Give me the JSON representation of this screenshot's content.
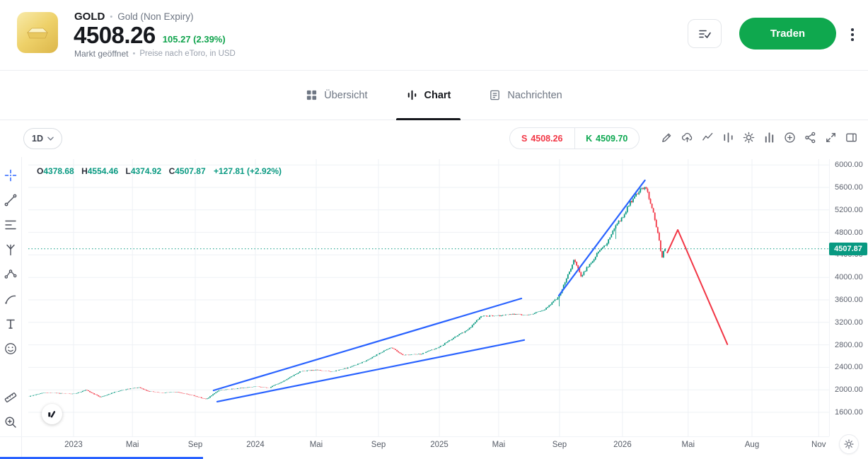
{
  "colors": {
    "accent_green": "#0fa84e",
    "sell_red": "#f23645",
    "buy_green": "#0ca750",
    "candle_up": "#089981",
    "candle_down": "#f23645",
    "trendline_blue": "#2962ff"
  },
  "header": {
    "symbol": "GOLD",
    "separator": "•",
    "instrument_name": "Gold (Non Expiry)",
    "price": "4508.26",
    "change": "105.27 (2.39%)",
    "market_status": "Markt geöffnet",
    "price_source_note": "Preise nach eToro, in USD",
    "trade_button_label": "Traden"
  },
  "tabs": [
    {
      "label": "Übersicht",
      "active": false
    },
    {
      "label": "Chart",
      "active": true
    },
    {
      "label": "Nachrichten",
      "active": false
    }
  ],
  "chart_toolbar": {
    "timeframe": "1D",
    "sell_label": "S",
    "sell_price": "4508.26",
    "buy_label": "K",
    "buy_price": "4509.70",
    "icons": [
      "draw",
      "cloud-sync",
      "trendline-style",
      "indicators",
      "settings",
      "chart-style",
      "compare",
      "share",
      "fullscreen",
      "side-panel"
    ]
  },
  "side_toolbar_icons": [
    "crosshair",
    "trend-line",
    "fib-lines",
    "pitchfork",
    "pattern",
    "brush",
    "text",
    "emoji",
    "measure",
    "zoom-in"
  ],
  "chart_data": {
    "type": "candlestick",
    "instrument": "GOLD",
    "timeframe": "1D",
    "legend": {
      "o_label": "O",
      "o_value": "4378.68",
      "h_label": "H",
      "h_value": "4554.46",
      "l_label": "L",
      "l_value": "4374.92",
      "c_label": "C",
      "c_value": "4507.87",
      "change": "+127.81 (+2.92%)"
    },
    "current_price": 4507.87,
    "axis_price_top": 6103,
    "axis_price_bottom": 1172,
    "grid": true,
    "y_ticks": [
      6000,
      5600,
      5200,
      4800,
      4400,
      4000,
      3600,
      3200,
      2800,
      2400,
      2000,
      1600
    ],
    "x_ticks": [
      {
        "label": "2023",
        "pos": 0.0565
      },
      {
        "label": "Mai",
        "pos": 0.13
      },
      {
        "label": "Sep",
        "pos": 0.2085
      },
      {
        "label": "2024",
        "pos": 0.2836
      },
      {
        "label": "Mai",
        "pos": 0.3595
      },
      {
        "label": "Sep",
        "pos": 0.4373
      },
      {
        "label": "2025",
        "pos": 0.5133
      },
      {
        "label": "Mai",
        "pos": 0.5874
      },
      {
        "label": "Sep",
        "pos": 0.6634
      },
      {
        "label": "2026",
        "pos": 0.742
      },
      {
        "label": "Mai",
        "pos": 0.824
      },
      {
        "label": "Aug",
        "pos": 0.9037
      },
      {
        "label": "Nov",
        "pos": 0.987
      }
    ],
    "candles_end_frac": 0.796,
    "candle_count": 440,
    "price_anchors": [
      [
        0.0,
        1880
      ],
      [
        0.02,
        1950
      ],
      [
        0.0565,
        1925
      ],
      [
        0.072,
        1995
      ],
      [
        0.09,
        1870
      ],
      [
        0.108,
        1960
      ],
      [
        0.125,
        2015
      ],
      [
        0.138,
        2040
      ],
      [
        0.15,
        1975
      ],
      [
        0.166,
        1945
      ],
      [
        0.185,
        1962
      ],
      [
        0.2,
        1918
      ],
      [
        0.21,
        1882
      ],
      [
        0.222,
        1832
      ],
      [
        0.238,
        1990
      ],
      [
        0.258,
        2020
      ],
      [
        0.284,
        2058
      ],
      [
        0.3,
        2032
      ],
      [
        0.32,
        2165
      ],
      [
        0.34,
        2330
      ],
      [
        0.36,
        2352
      ],
      [
        0.38,
        2322
      ],
      [
        0.4,
        2395
      ],
      [
        0.42,
        2505
      ],
      [
        0.437,
        2640
      ],
      [
        0.453,
        2755
      ],
      [
        0.468,
        2618
      ],
      [
        0.49,
        2635
      ],
      [
        0.513,
        2758
      ],
      [
        0.53,
        2915
      ],
      [
        0.55,
        3080
      ],
      [
        0.565,
        3310
      ],
      [
        0.587,
        3315
      ],
      [
        0.605,
        3345
      ],
      [
        0.625,
        3330
      ],
      [
        0.645,
        3425
      ],
      [
        0.663,
        3670
      ],
      [
        0.675,
        4080
      ],
      [
        0.682,
        4320
      ],
      [
        0.69,
        4030
      ],
      [
        0.7,
        4210
      ],
      [
        0.712,
        4450
      ],
      [
        0.722,
        4600
      ],
      [
        0.733,
        4890
      ],
      [
        0.742,
        5080
      ],
      [
        0.752,
        5340
      ],
      [
        0.76,
        5480
      ],
      [
        0.768,
        5600
      ],
      [
        0.773,
        5540
      ],
      [
        0.778,
        5280
      ],
      [
        0.783,
        5020
      ],
      [
        0.788,
        4620
      ],
      [
        0.791,
        4360
      ],
      [
        0.794,
        4470
      ],
      [
        0.796,
        4507.87
      ]
    ],
    "trendlines": [
      {
        "name": "channel-upper",
        "color": "#2962ff",
        "width": 2.2,
        "points": [
          [
            0.2314,
            1990
          ],
          [
            0.6157,
            3625
          ]
        ]
      },
      {
        "name": "channel-lower",
        "color": "#2962ff",
        "width": 2.2,
        "points": [
          [
            0.2359,
            1790
          ],
          [
            0.6193,
            2885
          ]
        ]
      },
      {
        "name": "steep-trend",
        "color": "#2962ff",
        "width": 2.2,
        "points": [
          [
            0.6625,
            3675
          ],
          [
            0.77,
            5726
          ]
        ]
      },
      {
        "name": "projection-down",
        "color": "#f23645",
        "width": 2,
        "points": [
          [
            0.798,
            4440
          ],
          [
            0.811,
            4845
          ],
          [
            0.873,
            2810
          ]
        ]
      }
    ]
  }
}
